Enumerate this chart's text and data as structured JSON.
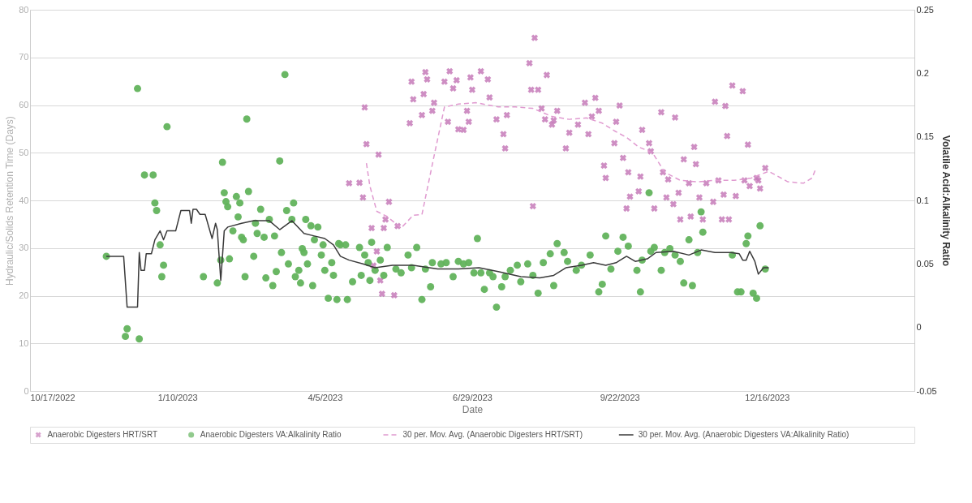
{
  "chart_data": {
    "type": "scatter",
    "xlabel": "Date",
    "ylabel": "Hydraulic/Solids Retention Time (Days)",
    "y2label": "Volatile Acid:Alkalinity Ratio",
    "xlim": [
      "2022-10-17",
      "2024-03-10"
    ],
    "xticks": [
      {
        "value": "2022-10-17",
        "label": "10/17/2022"
      },
      {
        "value": "2023-01-10",
        "label": "1/10/2023"
      },
      {
        "value": "2023-04-05",
        "label": "4/5/2023"
      },
      {
        "value": "2023-06-29",
        "label": "6/29/2023"
      },
      {
        "value": "2023-09-22",
        "label": "9/22/2023"
      },
      {
        "value": "2023-12-16",
        "label": "12/16/2023"
      }
    ],
    "ylim": [
      0,
      80
    ],
    "yticks": [
      0,
      10,
      20,
      30,
      40,
      50,
      60,
      70,
      80
    ],
    "y2lim": [
      -0.05,
      0.25
    ],
    "y2ticks": [
      -0.05,
      0,
      0.05,
      0.1,
      0.15,
      0.2,
      0.25
    ],
    "grid": "y",
    "legend": "bottom",
    "series": [
      {
        "name": "Anaerobic Digesters HRT/SRT",
        "marker": "cross",
        "color": "#c67ab8",
        "axis": "y",
        "x": [
          "2023-04-19",
          "2023-04-25",
          "2023-04-27",
          "2023-04-28",
          "2023-04-29",
          "2023-05-06",
          "2023-05-12",
          "2023-05-02",
          "2023-05-10",
          "2023-05-09",
          "2023-05-17",
          "2023-05-05",
          "2023-05-07",
          "2023-05-08",
          "2023-05-15",
          "2023-05-03",
          "2023-05-25",
          "2023-06-02",
          "2023-06-03",
          "2023-05-24",
          "2023-05-26",
          "2023-05-31",
          "2023-06-01",
          "2023-06-06",
          "2023-06-07",
          "2023-06-13",
          "2023-06-16",
          "2023-06-18",
          "2023-06-20",
          "2023-06-15",
          "2023-06-21",
          "2023-06-24",
          "2023-06-26",
          "2023-06-28",
          "2023-06-29",
          "2023-06-27",
          "2023-07-04",
          "2023-07-08",
          "2023-07-09",
          "2023-07-13",
          "2023-07-19",
          "2023-07-17",
          "2023-07-18",
          "2023-08-01",
          "2023-08-04",
          "2023-08-02",
          "2023-08-06",
          "2023-08-11",
          "2023-08-03",
          "2023-08-08",
          "2023-08-10",
          "2023-08-15",
          "2023-08-14",
          "2023-08-17",
          "2023-08-22",
          "2023-08-24",
          "2023-08-29",
          "2023-09-02",
          "2023-09-04",
          "2023-09-08",
          "2023-09-10",
          "2023-09-06",
          "2023-09-22",
          "2023-09-20",
          "2023-09-19",
          "2023-09-13",
          "2023-09-14",
          "2023-09-24",
          "2023-09-27",
          "2023-10-04",
          "2023-10-05",
          "2023-09-28",
          "2023-10-03",
          "2023-09-26",
          "2023-10-12",
          "2023-10-16",
          "2023-10-09",
          "2023-10-10",
          "2023-10-17",
          "2023-10-20",
          "2023-10-24",
          "2023-10-19",
          "2023-10-23",
          "2023-10-27",
          "2023-10-26",
          "2023-10-29",
          "2023-11-01",
          "2023-11-02",
          "2023-11-04",
          "2023-11-05",
          "2023-11-07",
          "2023-11-09",
          "2023-11-11",
          "2023-11-15",
          "2023-11-18",
          "2023-11-16",
          "2023-11-22",
          "2023-11-21",
          "2023-11-20",
          "2023-11-23",
          "2023-11-24",
          "2023-11-26",
          "2023-11-28",
          "2023-12-02",
          "2023-12-03",
          "2023-12-05",
          "2023-12-06",
          "2023-12-10",
          "2023-12-12",
          "2023-12-15",
          "2023-12-11"
        ],
        "values": [
          43.6,
          43.7,
          40.6,
          59.5,
          51.8,
          49.6,
          39.7,
          34.2,
          36.0,
          34.2,
          34.6,
          29.3,
          23.2,
          20.4,
          20.1,
          26.3,
          64.9,
          66.9,
          65.4,
          56.2,
          61.2,
          57.9,
          62.3,
          58.8,
          60.5,
          64.9,
          67.1,
          63.5,
          65.2,
          56.5,
          54.9,
          54.8,
          58.8,
          65.8,
          63.2,
          56.5,
          67.1,
          65.4,
          61.6,
          57.0,
          57.9,
          53.9,
          50.9,
          68.8,
          74.1,
          63.2,
          63.2,
          66.3,
          38.8,
          59.3,
          57.0,
          56.8,
          55.9,
          58.8,
          50.9,
          54.2,
          55.9,
          60.5,
          53.9,
          61.5,
          58.8,
          57.6,
          59.9,
          56.5,
          52.0,
          47.3,
          44.7,
          48.9,
          45.9,
          45.0,
          54.8,
          40.8,
          41.9,
          38.3,
          38.3,
          58.5,
          52.0,
          50.3,
          45.9,
          44.4,
          57.4,
          40.6,
          39.2,
          36.0,
          41.6,
          48.6,
          43.6,
          36.6,
          51.2,
          47.6,
          40.6,
          36.0,
          43.6,
          39.7,
          44.2,
          60.7,
          59.8,
          41.2,
          36.0,
          53.5,
          36.0,
          64.1,
          40.9,
          62.9,
          44.2,
          51.7,
          43.0,
          44.7,
          42.5,
          46.8,
          44.2
        ]
      },
      {
        "name": "Anaerobic Digesters VA:Alkalinity Ratio",
        "marker": "circle",
        "color": "#62b35c",
        "axis": "y2",
        "x": [
          "2022-11-30",
          "2022-12-11",
          "2022-12-12",
          "2022-12-19",
          "2022-12-18",
          "2022-12-22",
          "2022-12-27",
          "2022-12-28",
          "2022-12-29",
          "2022-12-31",
          "2023-01-02",
          "2023-01-01",
          "2023-01-04",
          "2023-01-25",
          "2023-02-02",
          "2023-02-05",
          "2023-02-04",
          "2023-02-09",
          "2023-02-06",
          "2023-02-07",
          "2023-02-08",
          "2023-02-13",
          "2023-02-15",
          "2023-02-14",
          "2023-02-11",
          "2023-02-16",
          "2023-02-17",
          "2023-02-19",
          "2023-02-18",
          "2023-02-20",
          "2023-02-23",
          "2023-02-24",
          "2023-02-25",
          "2023-02-27",
          "2023-03-01",
          "2023-03-02",
          "2023-03-04",
          "2023-03-06",
          "2023-03-07",
          "2023-03-08",
          "2023-03-10",
          "2023-03-13",
          "2023-03-11",
          "2023-03-14",
          "2023-03-15",
          "2023-03-17",
          "2023-03-18",
          "2023-03-19",
          "2023-03-21",
          "2023-03-22",
          "2023-03-23",
          "2023-03-24",
          "2023-03-25",
          "2023-03-26",
          "2023-03-28",
          "2023-03-29",
          "2023-03-30",
          "2023-04-01",
          "2023-04-03",
          "2023-04-04",
          "2023-04-05",
          "2023-04-07",
          "2023-04-09",
          "2023-04-10",
          "2023-04-12",
          "2023-04-13",
          "2023-04-18",
          "2023-04-14",
          "2023-04-17",
          "2023-04-25",
          "2023-04-28",
          "2023-05-02",
          "2023-04-30",
          "2023-05-07",
          "2023-05-11",
          "2023-04-21",
          "2023-04-26",
          "2023-05-01",
          "2023-05-04",
          "2023-05-09",
          "2023-05-16",
          "2023-05-19",
          "2023-05-23",
          "2023-05-25",
          "2023-05-28",
          "2023-05-31",
          "2023-06-02",
          "2023-06-05",
          "2023-06-06",
          "2023-06-11",
          "2023-06-14",
          "2023-06-18",
          "2023-06-21",
          "2023-06-24",
          "2023-06-27",
          "2023-07-02",
          "2023-06-30",
          "2023-07-06",
          "2023-07-04",
          "2023-07-09",
          "2023-07-11",
          "2023-07-13",
          "2023-07-16",
          "2023-07-18",
          "2023-07-21",
          "2023-07-25",
          "2023-07-27",
          "2023-07-31",
          "2023-08-03",
          "2023-08-06",
          "2023-08-09",
          "2023-08-13",
          "2023-08-15",
          "2023-08-17",
          "2023-08-21",
          "2023-08-23",
          "2023-08-28",
          "2023-08-31",
          "2023-09-05",
          "2023-09-10",
          "2023-09-12",
          "2023-09-14",
          "2023-09-17",
          "2023-09-21",
          "2023-09-24",
          "2023-09-27",
          "2023-10-02",
          "2023-10-04",
          "2023-10-05",
          "2023-10-09",
          "2023-10-10",
          "2023-10-12",
          "2023-10-16",
          "2023-10-18",
          "2023-10-21",
          "2023-10-24",
          "2023-10-27",
          "2023-10-29",
          "2023-11-03",
          "2023-11-01",
          "2023-11-06",
          "2023-11-08",
          "2023-11-09",
          "2023-11-26",
          "2023-11-29",
          "2023-12-01",
          "2023-12-04",
          "2023-12-05",
          "2023-12-08",
          "2023-12-10",
          "2023-12-12",
          "2023-12-15"
        ],
        "values": [
          0.056,
          -0.007,
          -0.001,
          -0.009,
          0.188,
          0.12,
          0.12,
          0.098,
          0.092,
          0.065,
          0.049,
          0.04,
          0.158,
          0.04,
          0.035,
          0.13,
          0.053,
          0.054,
          0.106,
          0.099,
          0.095,
          0.103,
          0.098,
          0.087,
          0.076,
          0.071,
          0.069,
          0.164,
          0.04,
          0.107,
          0.056,
          0.082,
          0.074,
          0.093,
          0.071,
          0.039,
          0.085,
          0.033,
          0.072,
          0.044,
          0.131,
          0.199,
          0.059,
          0.092,
          0.05,
          0.085,
          0.098,
          0.04,
          0.045,
          0.035,
          0.062,
          0.059,
          0.085,
          0.05,
          0.08,
          0.033,
          0.069,
          0.079,
          0.057,
          0.065,
          0.045,
          0.023,
          0.051,
          0.041,
          0.022,
          0.066,
          0.022,
          0.065,
          0.065,
          0.063,
          0.057,
          0.067,
          0.051,
          0.053,
          0.063,
          0.036,
          0.041,
          0.037,
          0.045,
          0.041,
          0.046,
          0.043,
          0.057,
          0.047,
          0.063,
          0.022,
          0.046,
          0.032,
          0.051,
          0.05,
          0.051,
          0.04,
          0.052,
          0.05,
          0.051,
          0.07,
          0.043,
          0.03,
          0.043,
          0.043,
          0.04,
          0.016,
          0.032,
          0.04,
          0.045,
          0.049,
          0.036,
          0.05,
          0.041,
          0.027,
          0.051,
          0.058,
          0.033,
          0.066,
          0.059,
          0.052,
          0.045,
          0.049,
          0.057,
          0.028,
          0.034,
          0.072,
          0.046,
          0.06,
          0.071,
          0.064,
          0.045,
          0.028,
          0.053,
          0.106,
          0.06,
          0.063,
          0.045,
          0.059,
          0.062,
          0.057,
          0.052,
          0.035,
          0.033,
          0.069,
          0.059,
          0.091,
          0.075,
          0.057,
          0.028,
          0.028,
          0.066,
          0.072,
          0.027,
          0.023,
          0.08,
          0.046
        ]
      },
      {
        "name": "30 per. Mov. Avg. (Anaerobic Digesters HRT/SRT)",
        "type": "line",
        "line_style": "dashed",
        "color": "#e09ad0",
        "axis": "y",
        "x": [
          "2023-04-29",
          "2023-05-01",
          "2023-05-05",
          "2023-05-11",
          "2023-05-19",
          "2023-05-26",
          "2023-05-31",
          "2023-06-07",
          "2023-06-13",
          "2023-06-21",
          "2023-07-01",
          "2023-07-14",
          "2023-07-24",
          "2023-08-03",
          "2023-08-14",
          "2023-08-24",
          "2023-09-03",
          "2023-09-12",
          "2023-09-19",
          "2023-09-26",
          "2023-10-03",
          "2023-10-11",
          "2023-10-18",
          "2023-10-27",
          "2023-11-06",
          "2023-11-16",
          "2023-11-27",
          "2023-12-07",
          "2023-12-17",
          "2023-12-28",
          "2024-01-06",
          "2024-01-11",
          "2024-01-13"
        ],
        "values": [
          47.8,
          43.0,
          37.7,
          36.6,
          34.2,
          36.9,
          37.0,
          49.3,
          59.6,
          60.2,
          60.5,
          59.6,
          59.6,
          59.3,
          57.6,
          57.0,
          57.3,
          56.2,
          54.6,
          53.2,
          51.2,
          50.0,
          45.9,
          44.2,
          43.9,
          44.2,
          44.2,
          44.7,
          46.1,
          43.9,
          43.6,
          44.7,
          46.5
        ]
      },
      {
        "name": "30 per. Mov. Avg. (Anaerobic Digesters VA:Alkalinity Ratio)",
        "type": "line",
        "line_style": "solid",
        "color": "#3a3a3a",
        "axis": "y2",
        "x": [
          "2022-11-30",
          "2022-12-10",
          "2022-12-12",
          "2022-12-18",
          "2022-12-19",
          "2022-12-20",
          "2022-12-22",
          "2022-12-23",
          "2022-12-26",
          "2022-12-28",
          "2022-12-31",
          "2023-01-02",
          "2023-01-04",
          "2023-01-09",
          "2023-01-12",
          "2023-01-17",
          "2023-01-18",
          "2023-01-19",
          "2023-01-21",
          "2023-01-23",
          "2023-01-26",
          "2023-01-30",
          "2023-02-01",
          "2023-02-02",
          "2023-02-04",
          "2023-02-06",
          "2023-02-08",
          "2023-02-16",
          "2023-02-23",
          "2023-03-04",
          "2023-03-10",
          "2023-03-17",
          "2023-03-24",
          "2023-03-30",
          "2023-04-05",
          "2023-04-10",
          "2023-04-14",
          "2023-04-19",
          "2023-04-27",
          "2023-05-04",
          "2023-05-14",
          "2023-05-26",
          "2023-06-09",
          "2023-06-21",
          "2023-07-03",
          "2023-07-14",
          "2023-07-27",
          "2023-08-07",
          "2023-08-15",
          "2023-08-22",
          "2023-08-31",
          "2023-09-07",
          "2023-09-14",
          "2023-09-20",
          "2023-09-26",
          "2023-10-01",
          "2023-10-08",
          "2023-10-13",
          "2023-10-23",
          "2023-11-01",
          "2023-11-08",
          "2023-11-16",
          "2023-11-25",
          "2023-11-30",
          "2023-12-02",
          "2023-12-04",
          "2023-12-06",
          "2023-12-09",
          "2023-12-11",
          "2023-12-14",
          "2023-12-17"
        ],
        "values": [
          0.056,
          0.056,
          0.016,
          0.016,
          0.059,
          0.045,
          0.045,
          0.058,
          0.058,
          0.069,
          0.076,
          0.069,
          0.076,
          0.076,
          0.092,
          0.092,
          0.082,
          0.093,
          0.093,
          0.089,
          0.089,
          0.07,
          0.082,
          0.077,
          0.037,
          0.076,
          0.079,
          0.082,
          0.084,
          0.084,
          0.077,
          0.084,
          0.074,
          0.072,
          0.07,
          0.065,
          0.056,
          0.053,
          0.05,
          0.047,
          0.049,
          0.049,
          0.046,
          0.046,
          0.047,
          0.044,
          0.04,
          0.039,
          0.041,
          0.047,
          0.049,
          0.051,
          0.049,
          0.051,
          0.056,
          0.052,
          0.054,
          0.059,
          0.06,
          0.057,
          0.061,
          0.059,
          0.059,
          0.058,
          0.053,
          0.053,
          0.06,
          0.052,
          0.042,
          0.047,
          0.047
        ]
      }
    ]
  }
}
